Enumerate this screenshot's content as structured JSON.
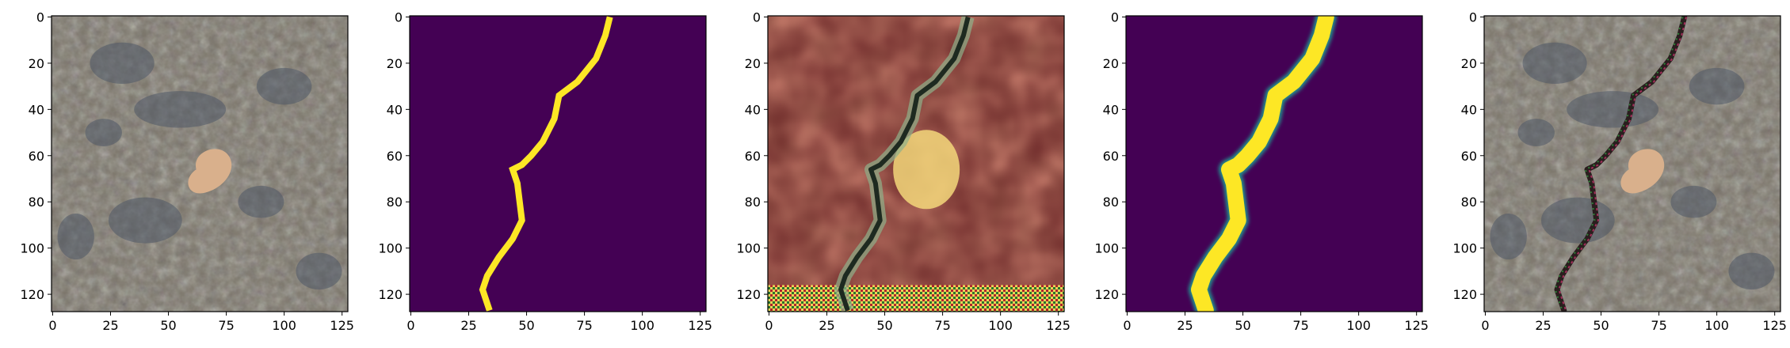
{
  "figure": {
    "panels": [
      {
        "id": "input-photo",
        "kind": "photo"
      },
      {
        "id": "ground-truth-mask",
        "kind": "mask"
      },
      {
        "id": "generated-image",
        "kind": "generated"
      },
      {
        "id": "predicted-mask",
        "kind": "heatmap"
      },
      {
        "id": "overlay",
        "kind": "overlay"
      }
    ],
    "axes": {
      "x_ticks": [
        0,
        25,
        50,
        75,
        100,
        125
      ],
      "y_ticks": [
        0,
        20,
        40,
        60,
        80,
        100,
        120
      ],
      "x_range": [
        -0.5,
        127.5
      ],
      "y_range": [
        127.5,
        -0.5
      ]
    },
    "colors": {
      "mask_background": "#440154",
      "mask_foreground": "#fde725",
      "heatmap_mid": "#21918c",
      "photo_base": "#7a7468",
      "generated_base": "#6e2a2a"
    },
    "crack_path": [
      [
        86,
        0
      ],
      [
        84,
        8
      ],
      [
        80,
        18
      ],
      [
        72,
        28
      ],
      [
        64,
        34
      ],
      [
        62,
        44
      ],
      [
        57,
        54
      ],
      [
        52,
        60
      ],
      [
        48,
        64
      ],
      [
        44,
        66
      ],
      [
        46,
        72
      ],
      [
        47,
        80
      ],
      [
        48,
        88
      ],
      [
        44,
        96
      ],
      [
        38,
        104
      ],
      [
        33,
        112
      ],
      [
        31,
        118
      ],
      [
        34,
        127
      ]
    ]
  }
}
